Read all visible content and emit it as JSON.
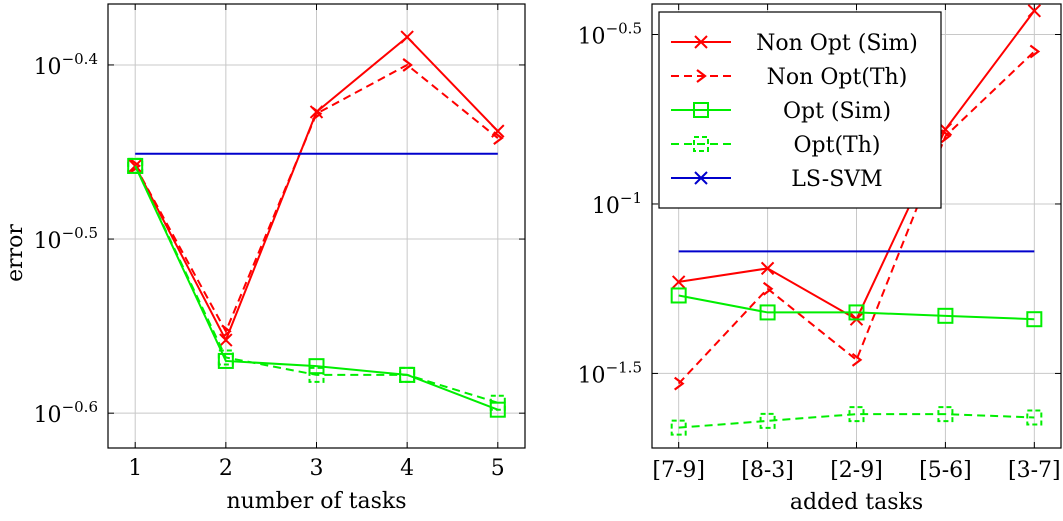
{
  "chart_data": [
    {
      "type": "line",
      "xlabel": "number of tasks",
      "ylabel": "error",
      "x": [
        1,
        2,
        3,
        4,
        5
      ],
      "xticks": [
        "1",
        "2",
        "3",
        "4",
        "5"
      ],
      "xlim": [
        0.7,
        5.3
      ],
      "yscale": "log",
      "ylim_log10": [
        -0.62,
        -0.365
      ],
      "yticks": [
        {
          "log10": -0.4,
          "base": "10",
          "exp": "−0.4"
        },
        {
          "log10": -0.5,
          "base": "10",
          "exp": "−0.5"
        },
        {
          "log10": -0.6,
          "base": "10",
          "exp": "−0.6"
        }
      ],
      "grid": true,
      "series": [
        {
          "name": "Non Opt (Sim)",
          "color": "#ff0000",
          "dash": "solid",
          "marker": "x",
          "values_log10": [
            -0.458,
            -0.558,
            -0.427,
            -0.384,
            -0.438
          ]
        },
        {
          "name": "Non Opt(Th)",
          "color": "#ff0000",
          "dash": "dashed",
          "marker": "chevron",
          "values_log10": [
            -0.458,
            -0.553,
            -0.428,
            -0.4,
            -0.442
          ]
        },
        {
          "name": "Opt (Sim)",
          "color": "#00ee00",
          "dash": "solid",
          "marker": "square",
          "values_log10": [
            -0.458,
            -0.57,
            -0.573,
            -0.578,
            -0.598
          ]
        },
        {
          "name": "Opt(Th)",
          "color": "#00ee00",
          "dash": "dashed",
          "marker": "dashsquare",
          "values_log10": [
            -0.458,
            -0.568,
            -0.578,
            -0.578,
            -0.594
          ]
        },
        {
          "name": "LS-SVM",
          "color": "#0000cc",
          "dash": "solid",
          "marker": "none",
          "values_log10": [
            -0.451,
            -0.451,
            -0.451,
            -0.451,
            -0.451
          ]
        }
      ]
    },
    {
      "type": "line",
      "xlabel": "added tasks",
      "ylabel": "",
      "categories": [
        "[7-9]",
        "[8-3]",
        "[2-9]",
        "[5-6]",
        "[3-7]"
      ],
      "xlim": [
        0.7,
        5.3
      ],
      "yscale": "log",
      "ylim_log10": [
        -1.72,
        -0.41
      ],
      "yticks": [
        {
          "log10": -0.5,
          "base": "10",
          "exp": "−0.5"
        },
        {
          "log10": -1.0,
          "base": "10",
          "exp": "−1"
        },
        {
          "log10": -1.5,
          "base": "10",
          "exp": "−1.5"
        }
      ],
      "grid": true,
      "legend": {
        "position": "top-left",
        "entries": [
          "Non Opt (Sim)",
          "Non Opt(Th)",
          "Opt (Sim)",
          "Opt(Th)",
          "LS-SVM"
        ]
      },
      "series": [
        {
          "name": "Non Opt (Sim)",
          "color": "#ff0000",
          "dash": "solid",
          "marker": "x",
          "values_log10": [
            -1.23,
            -1.19,
            -1.34,
            -0.78,
            -0.43
          ]
        },
        {
          "name": "Non Opt(Th)",
          "color": "#ff0000",
          "dash": "dashed",
          "marker": "chevron",
          "values_log10": [
            -1.53,
            -1.25,
            -1.46,
            -0.8,
            -0.55
          ]
        },
        {
          "name": "Opt (Sim)",
          "color": "#00ee00",
          "dash": "solid",
          "marker": "square",
          "values_log10": [
            -1.27,
            -1.32,
            -1.32,
            -1.33,
            -1.34
          ]
        },
        {
          "name": "Opt(Th)",
          "color": "#00ee00",
          "dash": "dashed",
          "marker": "dashsquare",
          "values_log10": [
            -1.66,
            -1.64,
            -1.62,
            -1.62,
            -1.63
          ]
        },
        {
          "name": "LS-SVM",
          "color": "#0000cc",
          "dash": "solid",
          "marker": "cross",
          "values_log10": [
            -1.14,
            -1.14,
            -1.14,
            -1.14,
            -1.14
          ]
        }
      ]
    }
  ]
}
